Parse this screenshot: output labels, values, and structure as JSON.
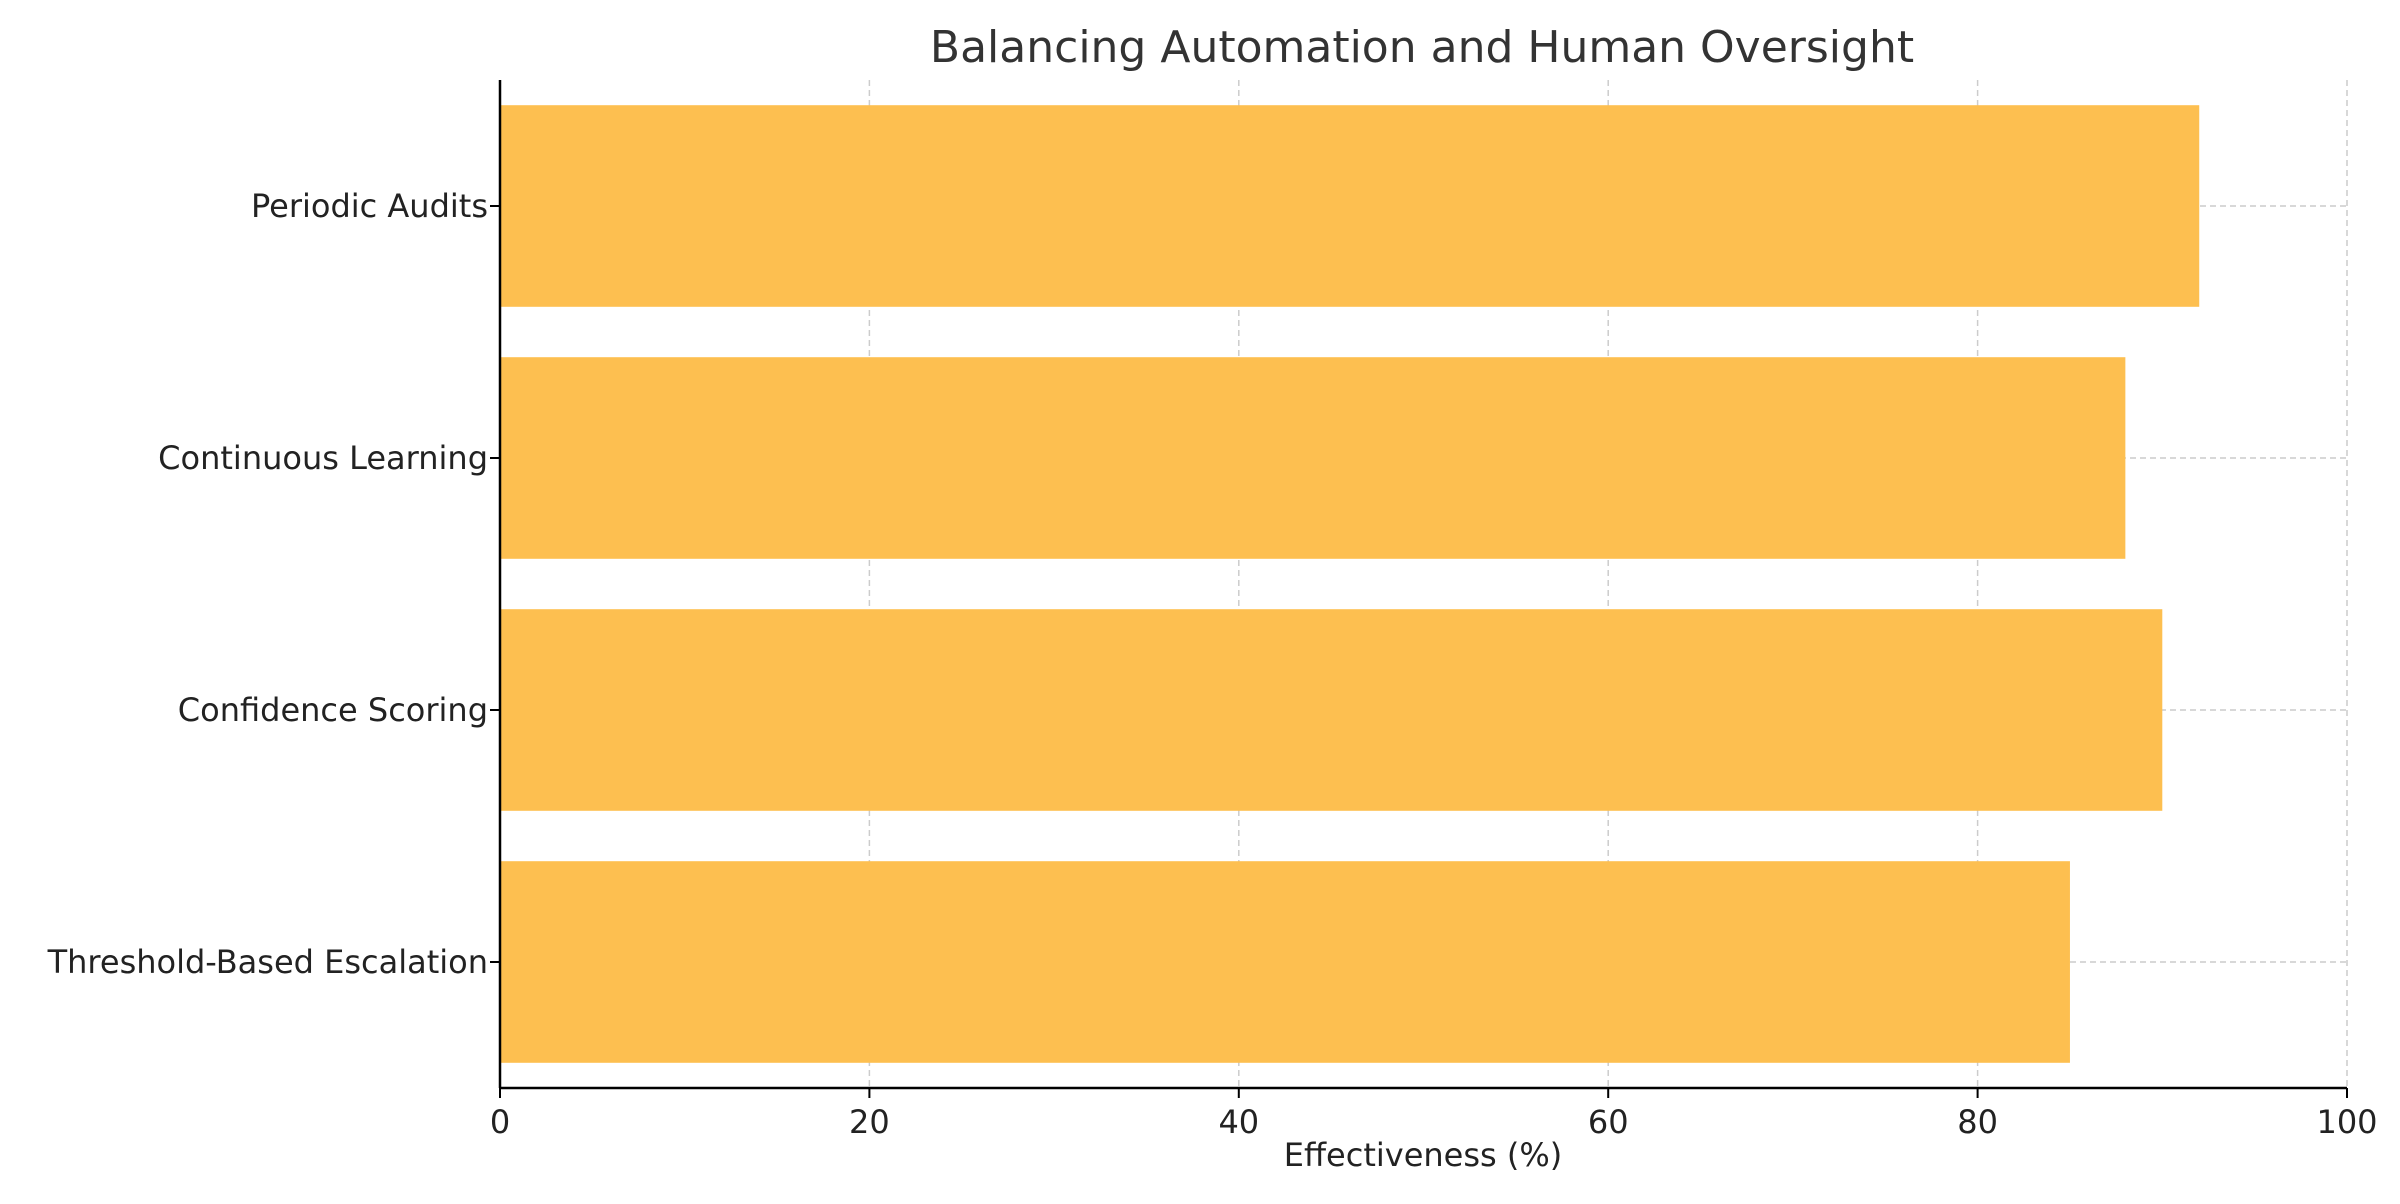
{
  "chart_data": {
    "type": "bar",
    "orientation": "horizontal",
    "title": "Balancing Automation and Human Oversight",
    "xlabel": "Effectiveness (%)",
    "ylabel": "",
    "categories": [
      "Threshold-Based Escalation",
      "Confidence Scoring",
      "Continuous Learning",
      "Periodic Audits"
    ],
    "values": [
      85,
      90,
      88,
      92
    ],
    "xlim": [
      0,
      100
    ],
    "xticks": [
      0,
      20,
      40,
      60,
      80,
      100
    ],
    "grid": true,
    "legend": "none",
    "bar_color": "#FDBF50"
  }
}
